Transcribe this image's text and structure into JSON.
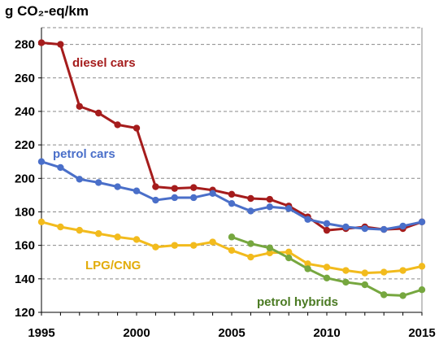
{
  "chart_data": {
    "type": "line",
    "ylabel": "g CO₂-eq/km",
    "xlabel": "",
    "xlim": [
      1995,
      2015
    ],
    "ylim": [
      120,
      290
    ],
    "xticks": [
      "1995",
      "2000",
      "2005",
      "2010",
      "2015"
    ],
    "yticks": [
      "120",
      "140",
      "160",
      "180",
      "200",
      "220",
      "240",
      "260",
      "280"
    ],
    "grid": "horizontal dashed",
    "series": [
      {
        "name": "diesel cars",
        "color": "#a51c1c",
        "x": [
          1995,
          1996,
          1997,
          1998,
          1999,
          2000,
          2001,
          2002,
          2003,
          2004,
          2005,
          2006,
          2007,
          2008,
          2009,
          2010,
          2011,
          2012,
          2013,
          2014,
          2015
        ],
        "y": [
          281,
          280,
          243,
          239,
          232,
          230,
          195,
          194,
          194.5,
          193,
          190.5,
          188,
          187.5,
          183.5,
          177,
          169,
          170,
          171,
          169.5,
          170,
          174
        ]
      },
      {
        "name": "petrol cars",
        "color": "#4a6fc9",
        "x": [
          1995,
          1996,
          1997,
          1998,
          1999,
          2000,
          2001,
          2002,
          2003,
          2004,
          2005,
          2006,
          2007,
          2008,
          2009,
          2010,
          2011,
          2012,
          2013,
          2014,
          2015
        ],
        "y": [
          210,
          206.5,
          199.5,
          197.5,
          195,
          192.5,
          187,
          188.5,
          188.5,
          191,
          185,
          180.5,
          183,
          182,
          175.5,
          173,
          171,
          170,
          169.5,
          171.5,
          174
        ]
      },
      {
        "name": "LPG/CNG",
        "color": "#f2bb1d",
        "x": [
          1995,
          1996,
          1997,
          1998,
          1999,
          2000,
          2001,
          2002,
          2003,
          2004,
          2005,
          2006,
          2007,
          2008,
          2009,
          2010,
          2011,
          2012,
          2013,
          2014,
          2015
        ],
        "y": [
          174,
          171,
          169,
          167,
          165,
          163.5,
          159,
          160,
          160,
          162,
          157,
          153,
          155.5,
          156,
          149,
          147,
          145,
          143.5,
          144,
          145,
          147.5
        ]
      },
      {
        "name": "petrol hybrids",
        "color": "#76a73f",
        "x": [
          2005,
          2006,
          2007,
          2008,
          2009,
          2010,
          2011,
          2012,
          2013,
          2014,
          2015
        ],
        "y": [
          165,
          161,
          158.5,
          152.5,
          146,
          140.5,
          138,
          136.5,
          130.5,
          130,
          133.5
        ]
      }
    ]
  }
}
